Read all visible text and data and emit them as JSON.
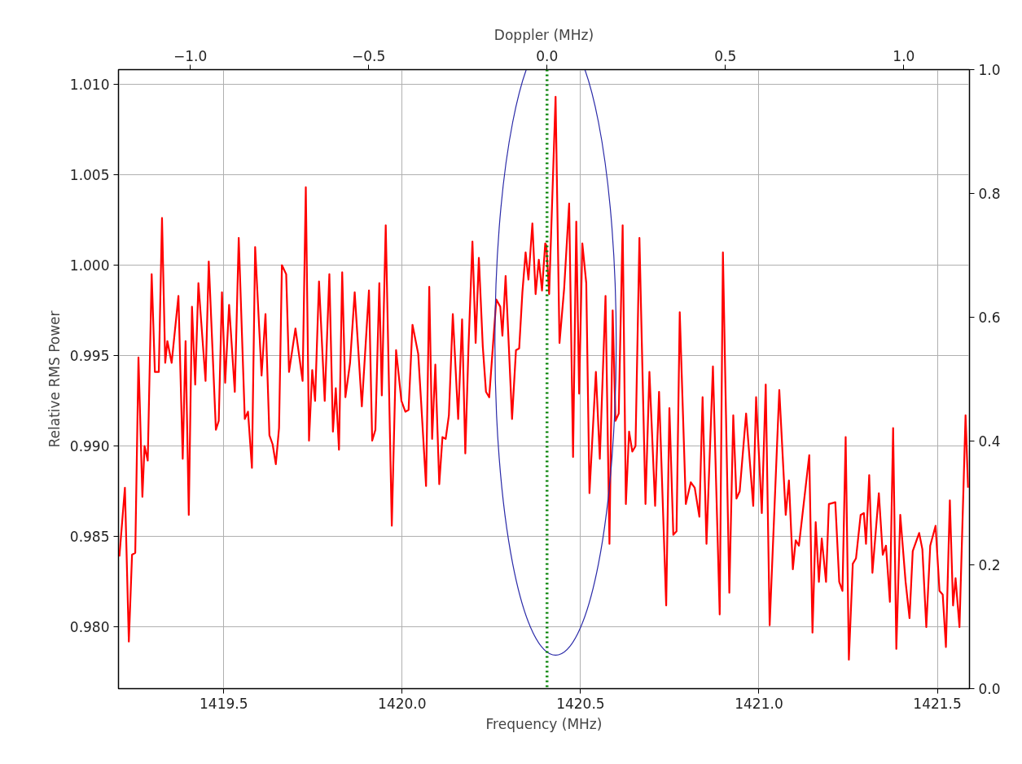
{
  "chart_data": {
    "type": "line",
    "xlabel": "Frequency (MHz)",
    "ylabel": "Relative RMS Power",
    "x2label": "Doppler (MHz)",
    "x": [
      1419.2075,
      1419.223,
      1419.234,
      1419.243,
      1419.252,
      1419.261,
      1419.272,
      1419.278,
      1419.287,
      1419.298,
      1419.307,
      1419.318,
      1419.327,
      1419.336,
      1419.342,
      1419.354,
      1419.373,
      1419.385,
      1419.393,
      1419.402,
      1419.411,
      1419.42,
      1419.429,
      1419.449,
      1419.458,
      1419.478,
      1419.486,
      1419.495,
      1419.504,
      1419.515,
      1419.531,
      1419.542,
      1419.559,
      1419.568,
      1419.579,
      1419.588,
      1419.606,
      1419.617,
      1419.628,
      1419.637,
      1419.646,
      1419.655,
      1419.663,
      1419.675,
      1419.683,
      1419.701,
      1419.721,
      1419.73,
      1419.739,
      1419.748,
      1419.756,
      1419.767,
      1419.783,
      1419.796,
      1419.806,
      1419.814,
      1419.823,
      1419.832,
      1419.841,
      1419.854,
      1419.867,
      1419.887,
      1419.907,
      1419.916,
      1419.925,
      1419.936,
      1419.943,
      1419.954,
      1419.971,
      1419.983,
      1419.998,
      1420.009,
      1420.018,
      1420.029,
      1420.045,
      1420.053,
      1420.067,
      1420.076,
      1420.084,
      1420.093,
      1420.104,
      1420.113,
      1420.122,
      1420.131,
      1420.142,
      1420.157,
      1420.168,
      1420.177,
      1420.186,
      1420.197,
      1420.206,
      1420.215,
      1420.226,
      1420.235,
      1420.244,
      1420.255,
      1420.264,
      1420.275,
      1420.281,
      1420.29,
      1420.299,
      1420.308,
      1420.319,
      1420.328,
      1420.337,
      1420.346,
      1420.354,
      1420.365,
      1420.374,
      1420.383,
      1420.392,
      1420.401,
      1420.404,
      1420.412,
      1420.43,
      1420.441,
      1420.454,
      1420.468,
      1420.479,
      1420.488,
      1420.496,
      1420.505,
      1420.516,
      1420.525,
      1420.543,
      1420.554,
      1420.57,
      1420.581,
      1420.59,
      1420.598,
      1420.607,
      1420.618,
      1420.627,
      1420.636,
      1420.645,
      1420.654,
      1420.665,
      1420.682,
      1420.693,
      1420.709,
      1420.72,
      1420.74,
      1420.749,
      1420.76,
      1420.769,
      1420.778,
      1420.795,
      1420.809,
      1420.82,
      1420.833,
      1420.842,
      1420.853,
      1420.871,
      1420.89,
      1420.899,
      1420.917,
      1420.928,
      1420.937,
      1420.946,
      1420.964,
      1420.984,
      1420.992,
      1421.008,
      1421.019,
      1421.03,
      1421.057,
      1421.075,
      1421.084,
      1421.095,
      1421.103,
      1421.112,
      1421.141,
      1421.15,
      1421.159,
      1421.168,
      1421.176,
      1421.188,
      1421.196,
      1421.214,
      1421.225,
      1421.234,
      1421.243,
      1421.252,
      1421.263,
      1421.272,
      1421.285,
      1421.294,
      1421.3,
      1421.309,
      1421.318,
      1421.336,
      1421.347,
      1421.356,
      1421.367,
      1421.376,
      1421.385,
      1421.396,
      1421.411,
      1421.422,
      1421.431,
      1421.449,
      1421.458,
      1421.469,
      1421.48,
      1421.495,
      1421.506,
      1421.515,
      1421.524,
      1421.535,
      1421.544,
      1421.551,
      1421.562,
      1421.579,
      1421.586
    ],
    "series": [
      {
        "color": "#ff0000",
        "values": [
          0.9839,
          0.9877,
          0.9792,
          0.984,
          0.9841,
          0.9949,
          0.9872,
          0.99,
          0.9892,
          0.9995,
          0.9941,
          0.9941,
          1.0026,
          0.9946,
          0.9958,
          0.9946,
          0.9983,
          0.9893,
          0.9958,
          0.9862,
          0.9977,
          0.9934,
          0.999,
          0.9936,
          1.0002,
          0.9909,
          0.9914,
          0.9985,
          0.9935,
          0.9978,
          0.993,
          1.0015,
          0.9915,
          0.9919,
          0.9888,
          1.001,
          0.9939,
          0.9973,
          0.9906,
          0.9901,
          0.989,
          0.991,
          1.0,
          0.9995,
          0.9941,
          0.9965,
          0.9936,
          1.0043,
          0.9903,
          0.9942,
          0.9925,
          0.9991,
          0.9925,
          0.9995,
          0.9908,
          0.9932,
          0.9898,
          0.9996,
          0.9927,
          0.9946,
          0.9985,
          0.9922,
          0.9986,
          0.9903,
          0.9909,
          0.999,
          0.9928,
          1.0022,
          0.9856,
          0.9953,
          0.9925,
          0.9919,
          0.992,
          0.9967,
          0.9951,
          0.9925,
          0.9878,
          0.9988,
          0.9904,
          0.9945,
          0.9879,
          0.9905,
          0.9904,
          0.9917,
          0.9973,
          0.9915,
          0.997,
          0.9896,
          0.9955,
          1.0013,
          0.9957,
          1.0004,
          0.9955,
          0.993,
          0.9927,
          0.9957,
          0.9981,
          0.9977,
          0.9961,
          0.9994,
          0.9955,
          0.9915,
          0.9953,
          0.9954,
          0.9985,
          1.0007,
          0.9992,
          1.0023,
          0.9984,
          1.0003,
          0.9986,
          1.0012,
          1.0011,
          0.9984,
          1.0093,
          0.9957,
          0.9987,
          1.0034,
          0.9894,
          1.0024,
          0.9929,
          1.0012,
          0.999,
          0.9874,
          0.9941,
          0.9893,
          0.9983,
          0.9846,
          0.9975,
          0.9914,
          0.9918,
          1.0022,
          0.9868,
          0.9908,
          0.9897,
          0.99,
          1.0015,
          0.9868,
          0.9941,
          0.9867,
          0.993,
          0.9812,
          0.9921,
          0.9851,
          0.9853,
          0.9974,
          0.9868,
          0.988,
          0.9877,
          0.9861,
          0.9927,
          0.9846,
          0.9944,
          0.9807,
          1.0007,
          0.9819,
          0.9917,
          0.9871,
          0.9875,
          0.9918,
          0.9867,
          0.9927,
          0.9863,
          0.9934,
          0.9801,
          0.9931,
          0.9862,
          0.9881,
          0.9832,
          0.9848,
          0.9845,
          0.9895,
          0.9797,
          0.9858,
          0.9825,
          0.9849,
          0.9825,
          0.9868,
          0.9869,
          0.9825,
          0.982,
          0.9905,
          0.9782,
          0.9835,
          0.9838,
          0.9862,
          0.9863,
          0.9846,
          0.9884,
          0.983,
          0.9874,
          0.984,
          0.9845,
          0.9814,
          0.991,
          0.9788,
          0.9862,
          0.9825,
          0.9805,
          0.9842,
          0.9852,
          0.9843,
          0.98,
          0.9845,
          0.9856,
          0.982,
          0.9818,
          0.9789,
          0.987,
          0.9812,
          0.9827,
          0.98,
          0.9917,
          0.9877
        ]
      }
    ],
    "xlim": [
      1419.205,
      1421.59
    ],
    "ylim": [
      0.9766,
      1.0108
    ],
    "xticks": [
      1419.5,
      {
        "value": 1420.0,
        "label": "1420.0"
      },
      1420.5,
      {
        "value": 1421.0,
        "label": "1421.0"
      },
      1421.5
    ],
    "yticks": [
      {
        "value": 0.98,
        "label": "0.980"
      },
      0.985,
      {
        "value": 0.99,
        "label": "0.990"
      },
      0.995,
      {
        "value": 1.0,
        "label": "1.000"
      },
      1.005,
      {
        "value": 1.01,
        "label": "1.010"
      }
    ],
    "x2lim": [
      -1.201,
      1.184
    ],
    "x2ticks": [
      {
        "value": -1.0,
        "label": "−1.0"
      },
      {
        "value": -0.5,
        "label": "−0.5"
      },
      {
        "value": 0.0,
        "label": "0.0"
      },
      0.5,
      {
        "value": 1.0,
        "label": "1.0"
      }
    ],
    "y2lim": [
      0,
      1
    ],
    "y2ticks": [
      {
        "value": 0,
        "label": "0.0"
      },
      0.2,
      0.4,
      0.6,
      0.8,
      {
        "value": 1,
        "label": "1.0"
      }
    ],
    "ref_lines": [
      {
        "axis": "x",
        "value": 1420.406,
        "color": "#008000",
        "line_style": "dotted"
      }
    ],
    "grid": true
  }
}
